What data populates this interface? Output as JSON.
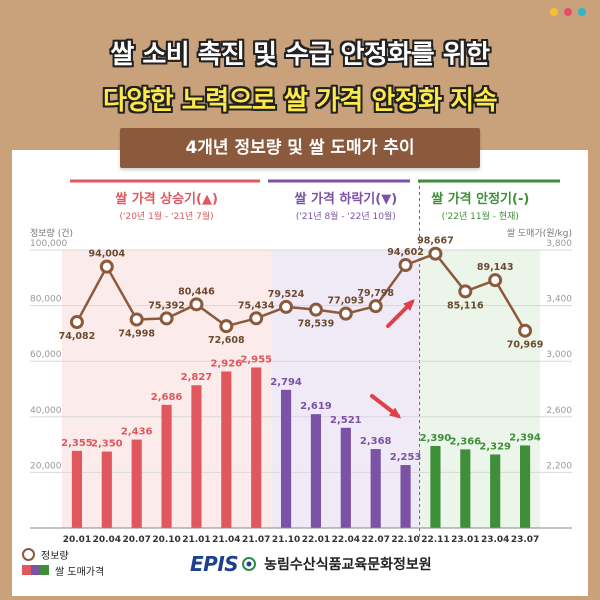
{
  "headline": {
    "line1": "쌀 소비 촉진 및 수급 안정화를 위한",
    "line2": "다양한 노력으로 쌀 가격 안정화 지속"
  },
  "subtitle": "4개년 정보량 및 쌀 도매가 추이",
  "phases": [
    {
      "title": "쌀 가격 상승기(▲)",
      "period": "('20년 1월 - '21년 7월)",
      "color": "#e0575d"
    },
    {
      "title": "쌀 가격 하락기(▼)",
      "period": "('21년 8월 - '22년 10월)",
      "color": "#7b52a6"
    },
    {
      "title": "쌀 가격 안정기(-)",
      "period": "('22년 11월 - 현재)",
      "color": "#3f8f3a"
    }
  ],
  "legend": {
    "line_label": "정보량",
    "bar_label": "쌀 도매가격"
  },
  "footer": {
    "logo": "EPIS",
    "org": "농림수산식품교육문화정보원"
  },
  "colors": {
    "phase1": "#e0575d",
    "phase2": "#7b52a6",
    "phase3": "#3f8f3a",
    "line": "#8b5a3c",
    "subtitle_bg": "#8b5a3c"
  },
  "chart_data": {
    "type": "bar+line",
    "categories": [
      "20.01",
      "20.04",
      "20.07",
      "20.10",
      "21.01",
      "21.04",
      "21.07",
      "21.10",
      "22.01",
      "22.04",
      "22.07",
      "22.10",
      "22.11",
      "23.01",
      "23.04",
      "23.07"
    ],
    "series": [
      {
        "name": "정보량",
        "type": "line",
        "axis": "left",
        "values": [
          74082,
          94004,
          74998,
          75392,
          80446,
          72608,
          75434,
          79524,
          78539,
          77093,
          79798,
          94602,
          98667,
          85116,
          89143,
          70969
        ],
        "labels": [
          "74,082",
          "94,004",
          "74,998",
          "75,392",
          "80,446",
          "72,608",
          "75,434",
          "79,524",
          "78,539",
          "77,093",
          "79,798",
          "94,602",
          "98,667",
          "85,116",
          "89,143",
          "70,969"
        ]
      },
      {
        "name": "쌀 도매가격",
        "type": "bar",
        "axis": "right",
        "values": [
          2355,
          2350,
          2436,
          2686,
          2827,
          2926,
          2955,
          2794,
          2619,
          2521,
          2368,
          2253,
          2390,
          2366,
          2329,
          2394
        ],
        "labels": [
          "2,355",
          "2,350",
          "2,436",
          "2,686",
          "2,827",
          "2,926",
          "2,955",
          "2,794",
          "2,619",
          "2,521",
          "2,368",
          "2,253",
          "2,390",
          "2,366",
          "2,329",
          "2,394"
        ],
        "phase": [
          0,
          0,
          0,
          0,
          0,
          0,
          0,
          1,
          1,
          1,
          1,
          1,
          2,
          2,
          2,
          2
        ]
      }
    ],
    "ylabel_left": "정보량 (건)",
    "ylabel_right": "쌀 도매가(원/kg)",
    "ylim_left": [
      0,
      100000
    ],
    "ylim_right": [
      1800,
      3800
    ],
    "yticks_left": [
      "100,000",
      "80,000",
      "60,000",
      "40,000",
      "20,000"
    ],
    "yticks_right": [
      "3,800",
      "3,400",
      "3,000",
      "2,600",
      "2,200"
    ],
    "grid": true
  }
}
